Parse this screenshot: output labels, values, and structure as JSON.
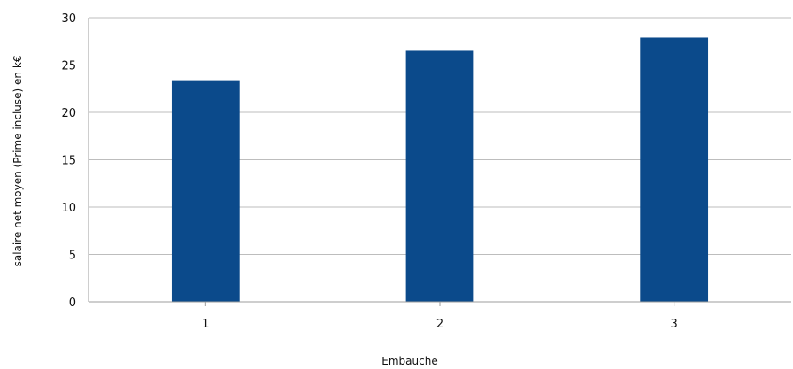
{
  "chart_data": {
    "type": "bar",
    "title": "",
    "xlabel": "Embauche",
    "ylabel": "salaire net moyen (Prime incluse) en k€",
    "categories": [
      "1",
      "2",
      "3"
    ],
    "values": [
      23.4,
      26.5,
      27.9
    ],
    "ylim": [
      0,
      30
    ],
    "yticks": [
      0,
      5,
      10,
      15,
      20,
      25,
      30
    ],
    "grid": true,
    "legend": "none",
    "colors": {
      "bar": "#0B4A8B",
      "grid": "#BDBDBD",
      "axis": "#9E9E9E"
    }
  }
}
